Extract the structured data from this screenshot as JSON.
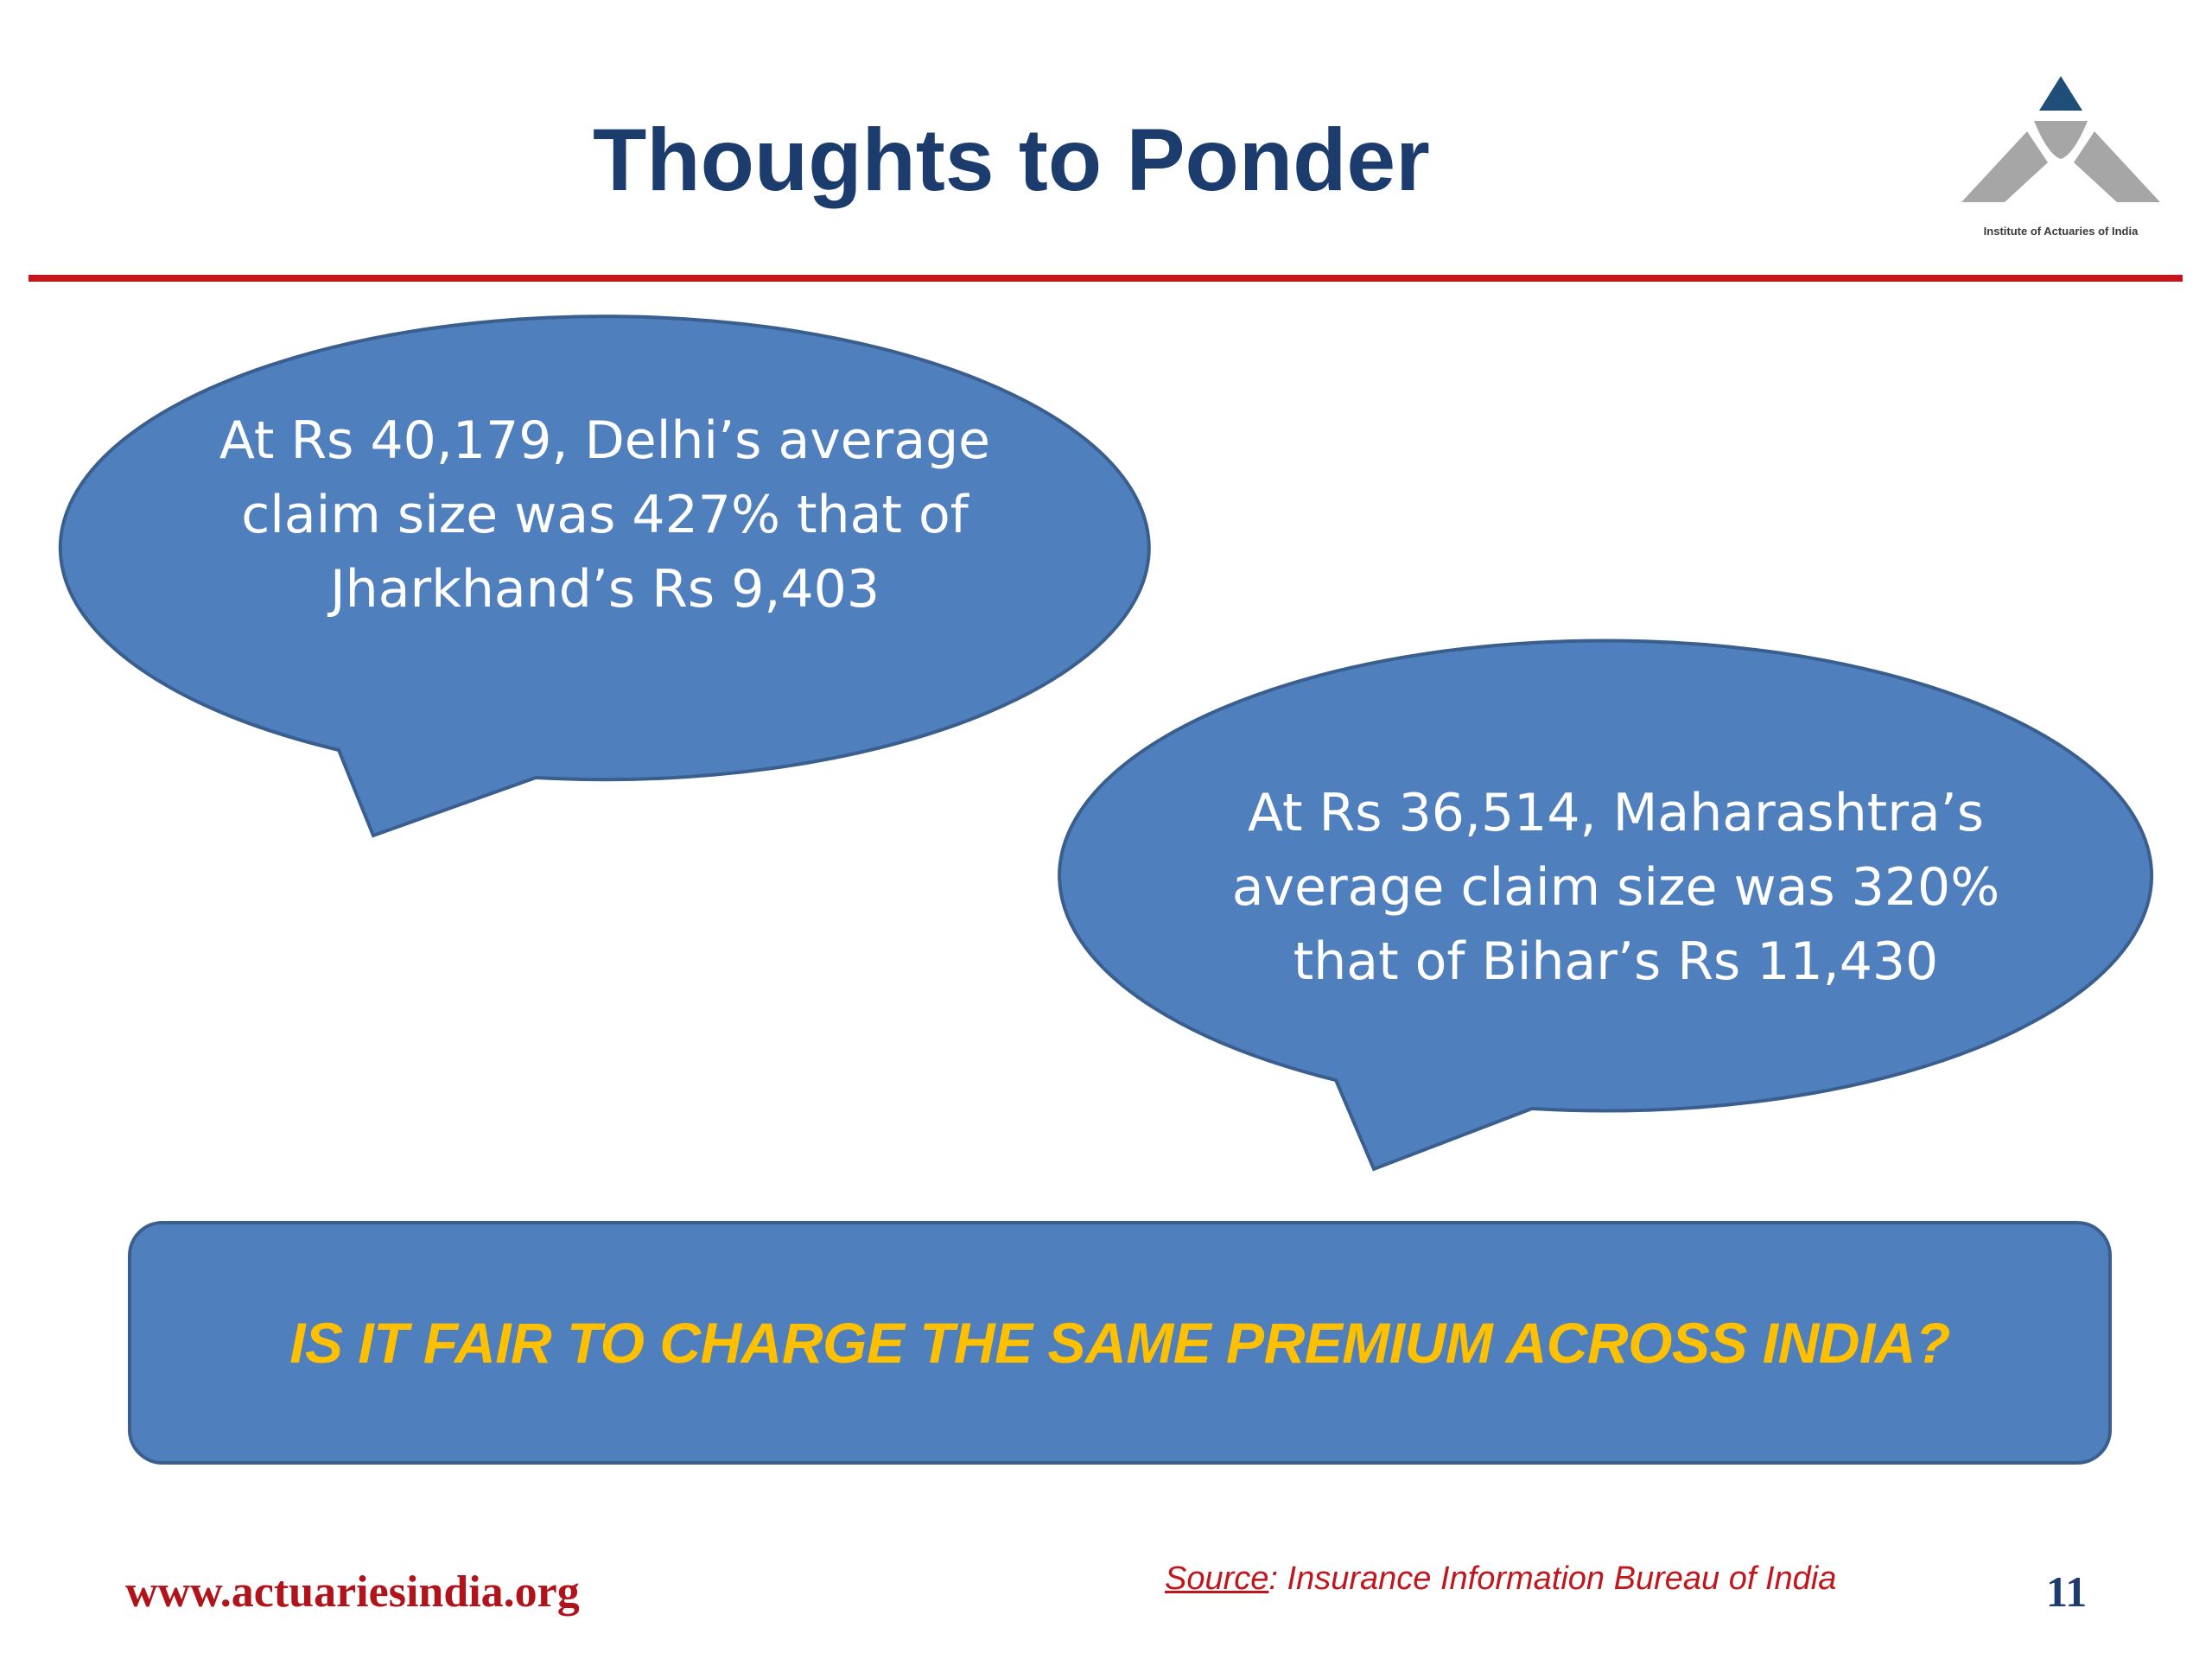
{
  "slide": {
    "title": "Thoughts to Ponder",
    "logo": {
      "caption": "Institute of Actuaries of India",
      "icon": "actuaries-triangle-logo",
      "colors": {
        "apex": "#1f4e79",
        "base": "#a6a6a6"
      }
    },
    "divider_color": "#c4161c",
    "bubbles": [
      {
        "lines": [
          "At Rs 40,179, Delhi’s average",
          "claim size was 427% that of",
          "Jharkhand’s Rs 9,403"
        ],
        "fill": "#4f7fbc"
      },
      {
        "lines": [
          "At Rs 36,514, Maharashtra’s",
          "average claim size was 320%",
          "that of Bihar’s Rs 11,430"
        ],
        "fill": "#4f7fbc"
      }
    ],
    "question": "IS IT FAIR TO CHARGE THE SAME PREMIUM ACROSS INDIA?",
    "footer": {
      "website": "www.actuariesindia.org",
      "source_label": "Source",
      "source_text": ": Insurance Information Bureau of India",
      "page_number": "11"
    }
  }
}
